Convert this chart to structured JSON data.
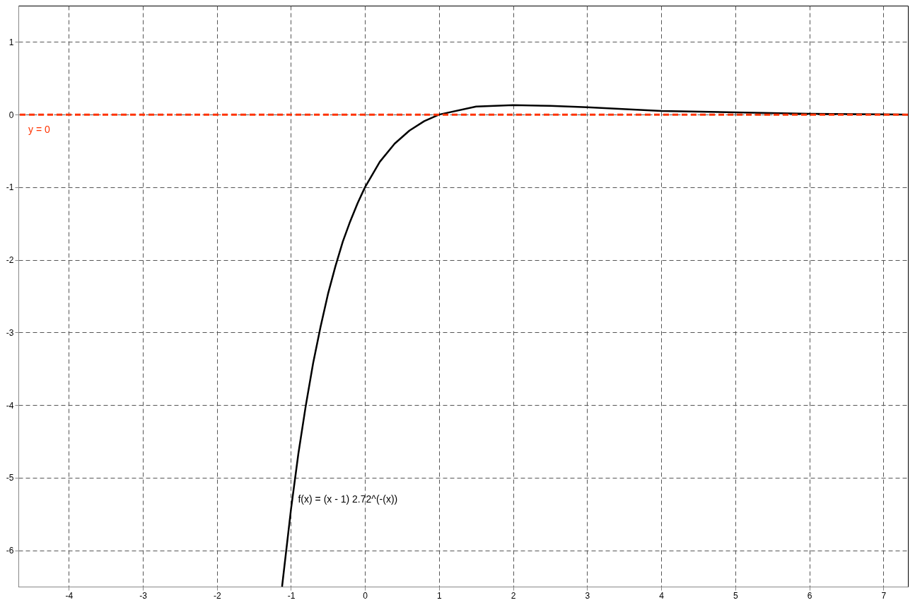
{
  "chart_data": {
    "type": "line",
    "x": [
      -1.12,
      -1.0,
      -0.9,
      -0.8,
      -0.7,
      -0.6,
      -0.5,
      -0.4,
      -0.3,
      -0.2,
      -0.1,
      0,
      0.2,
      0.4,
      0.6,
      0.8,
      1.0,
      1.5,
      2,
      2.5,
      3,
      4,
      5,
      6,
      7.33
    ],
    "series": [
      {
        "name": "f(x) = (x - 1) 2.72^(-(x))",
        "color": "#000000",
        "values": [
          -6.5,
          -5.44,
          -4.67,
          -4.01,
          -3.42,
          -2.92,
          -2.47,
          -2.09,
          -1.75,
          -1.47,
          -1.22,
          -1,
          -0.65,
          -0.4,
          -0.22,
          -0.09,
          0,
          0.11,
          0.13,
          0.12,
          0.1,
          0.05,
          0.03,
          0.01,
          0.0
        ]
      }
    ],
    "xlim": [
      -4.68,
      7.33
    ],
    "ylim": [
      -6.5,
      1.5
    ],
    "xticks": [
      -4,
      -3,
      -2,
      -1,
      0,
      1,
      2,
      3,
      4,
      5,
      6,
      7
    ],
    "yticks": [
      -6,
      -5,
      -4,
      -3,
      -2,
      -1,
      0,
      1
    ],
    "ref_lines": [
      {
        "axis": "y",
        "value": 0,
        "label": "y = 0",
        "color": "#ff3300",
        "line_style": "dashed"
      }
    ],
    "grid": true,
    "marker": "none",
    "line_style": "solid"
  }
}
